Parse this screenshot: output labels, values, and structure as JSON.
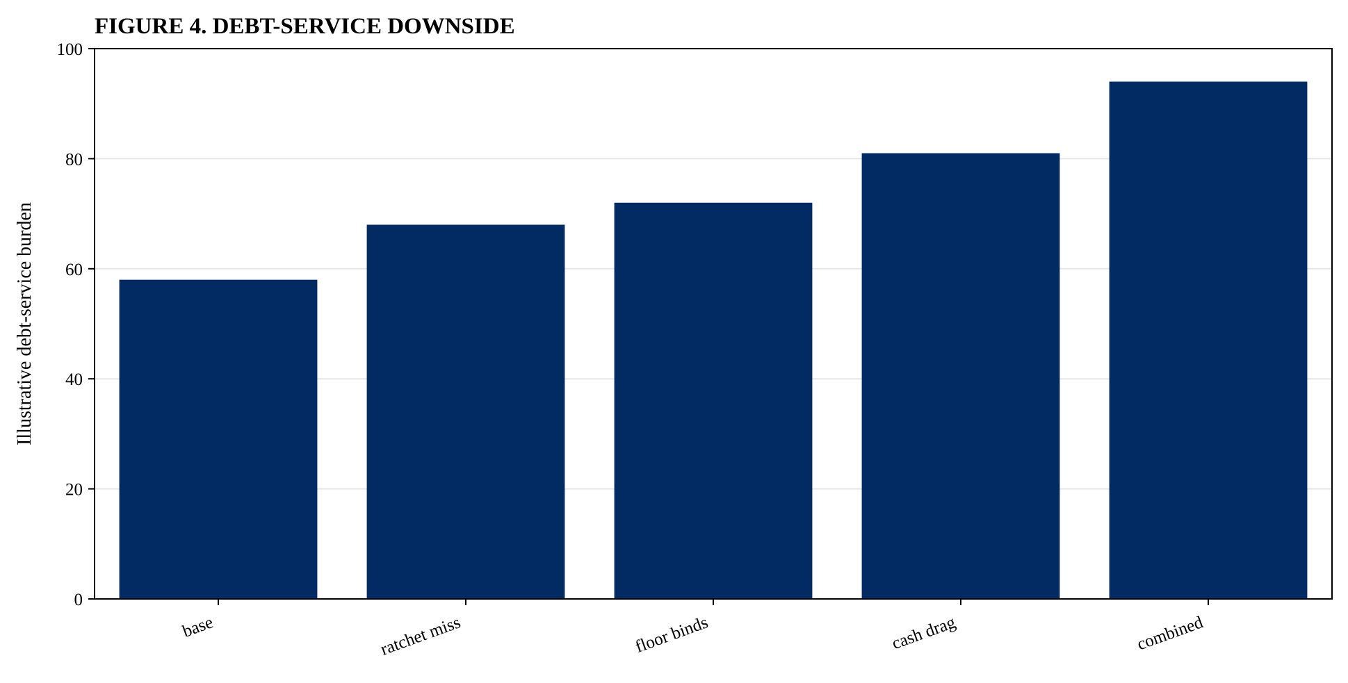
{
  "chart_data": {
    "type": "bar",
    "title": "FIGURE 4. DEBT-SERVICE DOWNSIDE",
    "xlabel": "",
    "ylabel": "Illustrative debt-service burden",
    "categories": [
      "base",
      "ratchet miss",
      "floor binds",
      "cash drag",
      "combined"
    ],
    "values": [
      58,
      68,
      72,
      81,
      94
    ],
    "ylim": [
      0,
      100
    ],
    "yticks": [
      0,
      20,
      40,
      60,
      80,
      100
    ],
    "grid": "horizontal",
    "legend": "none",
    "colors": {
      "bar": "#022a63",
      "grid": "#e6e6e6",
      "axis": "#000000"
    }
  }
}
